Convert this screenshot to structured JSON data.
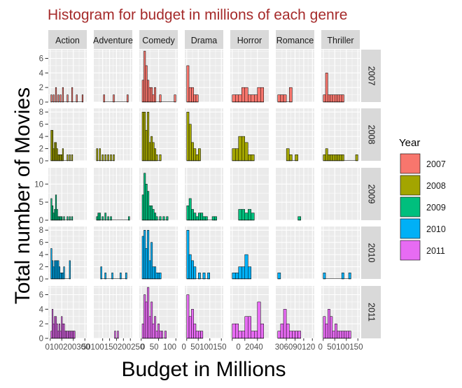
{
  "chart_data": {
    "type": "bar",
    "title": "Histogram for budget in millions of each genre",
    "xlabel": "Budget in Millions",
    "ylabel": "Total number of Movies",
    "legend": {
      "title": "Year",
      "position": "right",
      "entries": [
        {
          "label": "2007",
          "color": "#F8766D"
        },
        {
          "label": "2008",
          "color": "#A3A500"
        },
        {
          "label": "2009",
          "color": "#00BF7D"
        },
        {
          "label": "2010",
          "color": "#00B0F6"
        },
        {
          "label": "2011",
          "color": "#E76BF3"
        }
      ]
    },
    "grid": true,
    "columns": [
      {
        "label": "Action",
        "xlim": [
          0,
          300
        ],
        "x_ticks": [
          0,
          100,
          200,
          300
        ],
        "x_tick_text": "0100200300",
        "bin_width": 10
      },
      {
        "label": "Adventure",
        "xlim": [
          0,
          250
        ],
        "x_ticks": [
          50,
          100,
          150,
          200,
          250
        ],
        "x_tick_text": "50100150200250",
        "bin_width": 10
      },
      {
        "label": "Comedy",
        "xlim": [
          0,
          100
        ],
        "x_ticks": [
          0,
          50,
          100
        ],
        "x_tick_text": "0  50  100",
        "bin_width": 5
      },
      {
        "label": "Drama",
        "xlim": [
          0,
          150
        ],
        "x_ticks": [
          0,
          50,
          100,
          150
        ],
        "x_tick_text": "0  50100150",
        "bin_width": 10
      },
      {
        "label": "Horror",
        "xlim": [
          0,
          55
        ],
        "x_ticks": [
          0,
          20,
          40
        ],
        "x_tick_text": "0  2040",
        "bin_width": 5
      },
      {
        "label": "Romance",
        "xlim": [
          0,
          120
        ],
        "x_ticks": [
          30,
          60,
          90,
          120
        ],
        "x_tick_text": "306090120",
        "bin_width": 10
      },
      {
        "label": "Thriller",
        "xlim": [
          0,
          150
        ],
        "x_ticks": [
          0,
          50,
          100,
          150
        ],
        "x_tick_text": "0  50100150",
        "bin_width": 10
      }
    ],
    "rows": [
      {
        "label": "2007",
        "color": "#F8766D",
        "ylim": [
          0,
          7.2
        ],
        "y_ticks": [
          0,
          2,
          4,
          6
        ],
        "series": [
          {
            "genre": "Action",
            "x": [
              10,
              30,
              50,
              70,
              90,
              110,
              150,
              190,
              230,
              280
            ],
            "counts": [
              1,
              1,
              2,
              1,
              1,
              2,
              1,
              2,
              1,
              1
            ]
          },
          {
            "genre": "Adventure",
            "x": [
              60,
              130,
              230
            ],
            "counts": [
              1,
              1,
              1
            ]
          },
          {
            "genre": "Comedy",
            "x": [
              5,
              10,
              15,
              20,
              25,
              30,
              35,
              40,
              55,
              97.5
            ],
            "counts": [
              3,
              7,
              5,
              3,
              2,
              2,
              1,
              2,
              1,
              1
            ]
          },
          {
            "genre": "Drama",
            "x": [
              5,
              15,
              25,
              35,
              45
            ],
            "counts": [
              5,
              2,
              2,
              1,
              1
            ]
          },
          {
            "genre": "Horror",
            "x": [
              2.5,
              7.5,
              12.5,
              17.5,
              22.5,
              27.5,
              32.5,
              37.5,
              42.5,
              47.5
            ],
            "counts": [
              1,
              1,
              1,
              2,
              2,
              1,
              1,
              1,
              2,
              2
            ]
          },
          {
            "genre": "Romance",
            "x": [
              5,
              15,
              25,
              45
            ],
            "counts": [
              1,
              1,
              1,
              2
            ]
          },
          {
            "genre": "Thriller",
            "x": [
              5,
              15,
              25,
              35,
              45,
              55,
              65,
              75,
              85
            ],
            "counts": [
              1,
              4,
              1,
              1,
              1,
              1,
              1,
              1,
              1
            ]
          }
        ]
      },
      {
        "label": "2008",
        "color": "#A3A500",
        "ylim": [
          0,
          8.6
        ],
        "y_ticks": [
          0,
          2,
          4,
          6,
          8
        ],
        "series": [
          {
            "genre": "Action",
            "x": [
              10,
              20,
              30,
              40,
              50,
              60,
              70,
              80,
              90,
              100,
              110,
              150,
              170,
              190
            ],
            "counts": [
              5,
              5,
              2,
              3,
              3,
              2,
              1,
              1,
              1,
              1,
              2,
              1,
              1,
              1
            ]
          },
          {
            "genre": "Adventure",
            "x": [
              10,
              30,
              50,
              70,
              90,
              110,
              130
            ],
            "counts": [
              2,
              2,
              1,
              1,
              1,
              1,
              1
            ]
          },
          {
            "genre": "Comedy",
            "x": [
              5,
              10,
              15,
              20,
              25,
              30,
              35,
              40,
              45,
              55
            ],
            "counts": [
              8,
              8,
              5,
              8,
              3,
              4,
              3,
              2,
              1,
              1
            ]
          },
          {
            "genre": "Drama",
            "x": [
              5,
              15,
              25,
              35,
              45,
              55
            ],
            "counts": [
              8,
              6,
              3,
              2,
              1,
              2
            ]
          },
          {
            "genre": "Horror",
            "x": [
              2.5,
              7.5,
              12.5,
              17.5,
              22.5,
              27.5,
              32.5
            ],
            "counts": [
              2,
              2,
              4,
              4,
              3,
              1,
              1
            ]
          },
          {
            "genre": "Romance",
            "x": [
              35,
              45,
              65
            ],
            "counts": [
              2,
              1,
              1
            ]
          },
          {
            "genre": "Thriller",
            "x": [
              5,
              15,
              25,
              35,
              45,
              55,
              65,
              75,
              85,
              145
            ],
            "counts": [
              1,
              2,
              1,
              1,
              1,
              1,
              1,
              1,
              1,
              1
            ]
          }
        ]
      },
      {
        "label": "2009",
        "color": "#00BF7D",
        "ylim": [
          0,
          14.5
        ],
        "y_ticks": [
          0,
          5,
          10
        ],
        "series": [
          {
            "genre": "Action",
            "x": [
              10,
              20,
              30,
              40,
              50,
              60,
              70,
              80,
              90,
              100,
              120,
              150,
              170,
              190
            ],
            "counts": [
              6,
              4,
              2,
              3,
              7,
              3,
              1,
              1,
              1,
              1,
              1,
              1,
              1,
              1
            ]
          },
          {
            "genre": "Adventure",
            "x": [
              10,
              20,
              30,
              50,
              70,
              90,
              110,
              240
            ],
            "counts": [
              1,
              2,
              2,
              1,
              2,
              1,
              1,
              1
            ]
          },
          {
            "genre": "Comedy",
            "x": [
              5,
              10,
              15,
              20,
              25,
              30,
              35,
              40,
              45,
              55,
              65,
              75
            ],
            "counts": [
              7,
              13,
              10,
              8,
              4,
              4,
              3,
              2,
              1,
              1,
              1,
              1
            ]
          },
          {
            "genre": "Drama",
            "x": [
              5,
              15,
              25,
              35,
              45,
              55,
              65,
              75,
              85,
              115,
              125
            ],
            "counts": [
              4,
              6,
              3,
              2,
              1,
              2,
              2,
              1,
              1,
              1,
              1
            ]
          },
          {
            "genre": "Horror",
            "x": [
              12.5,
              17.5,
              22.5,
              27.5,
              32.5
            ],
            "counts": [
              3,
              3,
              2,
              3,
              2
            ]
          },
          {
            "genre": "Romance",
            "x": [
              75
            ],
            "counts": [
              1
            ]
          },
          {
            "genre": "Thriller",
            "x": [],
            "counts": []
          }
        ]
      },
      {
        "label": "2010",
        "color": "#00B0F6",
        "ylim": [
          0,
          8.6
        ],
        "y_ticks": [
          0,
          2,
          4,
          6,
          8
        ],
        "series": [
          {
            "genre": "Action",
            "x": [
              10,
              20,
              30,
              40,
              50,
              60,
              70,
              80,
              90,
              100,
              110,
              120,
              170
            ],
            "counts": [
              5,
              3,
              2,
              3,
              3,
              3,
              3,
              2,
              1,
              1,
              1,
              2,
              3
            ]
          },
          {
            "genre": "Adventure",
            "x": [
              40,
              70,
              120,
              180,
              220
            ],
            "counts": [
              2,
              1,
              1,
              1,
              1
            ]
          },
          {
            "genre": "Comedy",
            "x": [
              5,
              10,
              15,
              20,
              25,
              30,
              35,
              40,
              45,
              50,
              55
            ],
            "counts": [
              7,
              8,
              5,
              8,
              3,
              6,
              2,
              2,
              1,
              1,
              1
            ]
          },
          {
            "genre": "Drama",
            "x": [
              5,
              15,
              25,
              35,
              55,
              75,
              95
            ],
            "counts": [
              8,
              4,
              3,
              2,
              1,
              1,
              1
            ]
          },
          {
            "genre": "Horror",
            "x": [
              2.5,
              7.5,
              12.5,
              17.5,
              22.5,
              27.5
            ],
            "counts": [
              1,
              1,
              2,
              2,
              4,
              2
            ]
          },
          {
            "genre": "Romance",
            "x": [
              5
            ],
            "counts": [
              1
            ]
          },
          {
            "genre": "Thriller",
            "x": [
              5,
              85,
              115
            ],
            "counts": [
              1,
              1,
              1
            ]
          }
        ]
      },
      {
        "label": "2011",
        "color": "#E76BF3",
        "ylim": [
          0,
          7.2
        ],
        "y_ticks": [
          0,
          2,
          4,
          6
        ],
        "series": [
          {
            "genre": "Action",
            "x": [
              10,
              20,
              30,
              40,
              50,
              60,
              70,
              80,
              90,
              100,
              110,
              120,
              130,
              140,
              150,
              160,
              170,
              180,
              190,
              200,
              210
            ],
            "counts": [
              1,
              4,
              2,
              3,
              3,
              2,
              1,
              2,
              1,
              3,
              2,
              2,
              1,
              1,
              1,
              1,
              1,
              1,
              1,
              1,
              1
            ]
          },
          {
            "genre": "Adventure",
            "x": [
              140,
              160
            ],
            "counts": [
              1,
              1
            ]
          },
          {
            "genre": "Comedy",
            "x": [
              5,
              10,
              15,
              20,
              25,
              30,
              35,
              40,
              45,
              50,
              55,
              60,
              70
            ],
            "counts": [
              2,
              6,
              5,
              7,
              3,
              5,
              2,
              3,
              1,
              2,
              1,
              1,
              1
            ]
          },
          {
            "genre": "Drama",
            "x": [
              5,
              15,
              25,
              35,
              45,
              55,
              65
            ],
            "counts": [
              6,
              3,
              4,
              2,
              1,
              1,
              1
            ]
          },
          {
            "genre": "Horror",
            "x": [
              2.5,
              7.5,
              12.5,
              17.5,
              22.5,
              27.5,
              32.5,
              37.5,
              42.5,
              47.5
            ],
            "counts": [
              2,
              2,
              1,
              1,
              3,
              3,
              1,
              1,
              5,
              2
            ]
          },
          {
            "genre": "Romance",
            "x": [
              5,
              15,
              25,
              35,
              45,
              55,
              65,
              75
            ],
            "counts": [
              1,
              2,
              4,
              2,
              1,
              1,
              1,
              1
            ]
          },
          {
            "genre": "Thriller",
            "x": [
              5,
              15,
              25,
              35,
              45,
              55,
              65,
              75,
              85,
              95,
              105,
              115
            ],
            "counts": [
              3,
              2,
              4,
              3,
              1,
              2,
              1,
              1,
              1,
              1,
              1,
              1
            ]
          }
        ]
      }
    ]
  }
}
